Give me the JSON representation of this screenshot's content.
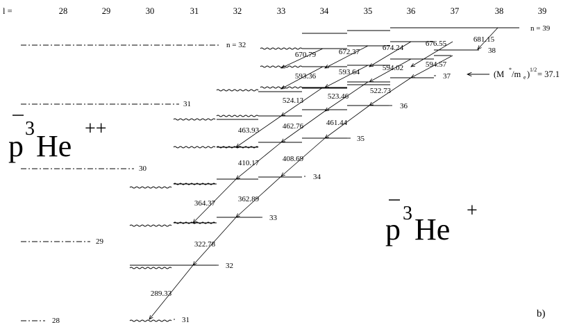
{
  "diagram": {
    "l_prefix": "l  =",
    "l_values": [
      "28",
      "29",
      "30",
      "31",
      "32",
      "33",
      "34",
      "35",
      "36",
      "37",
      "38",
      "39"
    ],
    "left_levels": [
      {
        "label": "n = 32"
      },
      {
        "label": "31"
      },
      {
        "label": "30"
      },
      {
        "label": "29"
      },
      {
        "label": "28"
      }
    ],
    "right_levels": [
      {
        "label": "n = 39"
      },
      {
        "label": "38"
      },
      {
        "label": "37"
      },
      {
        "label": "36"
      },
      {
        "label": "35"
      },
      {
        "label": "34"
      },
      {
        "label": "33"
      },
      {
        "label": "32"
      },
      {
        "label": "31"
      }
    ],
    "transitions": [
      "681.15",
      "670.79",
      "672.37",
      "674.24",
      "676.55",
      "593.36",
      "593.64",
      "594.02",
      "594.57",
      "524.13",
      "523.46",
      "522.73",
      "463.93",
      "462.76",
      "461.44",
      "410.17",
      "408.69",
      "364.37",
      "362.89",
      "322.78",
      "289.33"
    ],
    "label_left_species": {
      "p": "p",
      "sup": "3",
      "he": "He",
      "charge": "++"
    },
    "label_right_species": {
      "p": "p",
      "sup": "3",
      "he": "He",
      "charge": "+"
    },
    "annotation": {
      "prefix": "(M",
      "star": "*",
      "mid": "/m",
      "sub": "e",
      "close": ")",
      "power": "1/2",
      "value": " = 37.1"
    },
    "panel_label": "b)"
  }
}
